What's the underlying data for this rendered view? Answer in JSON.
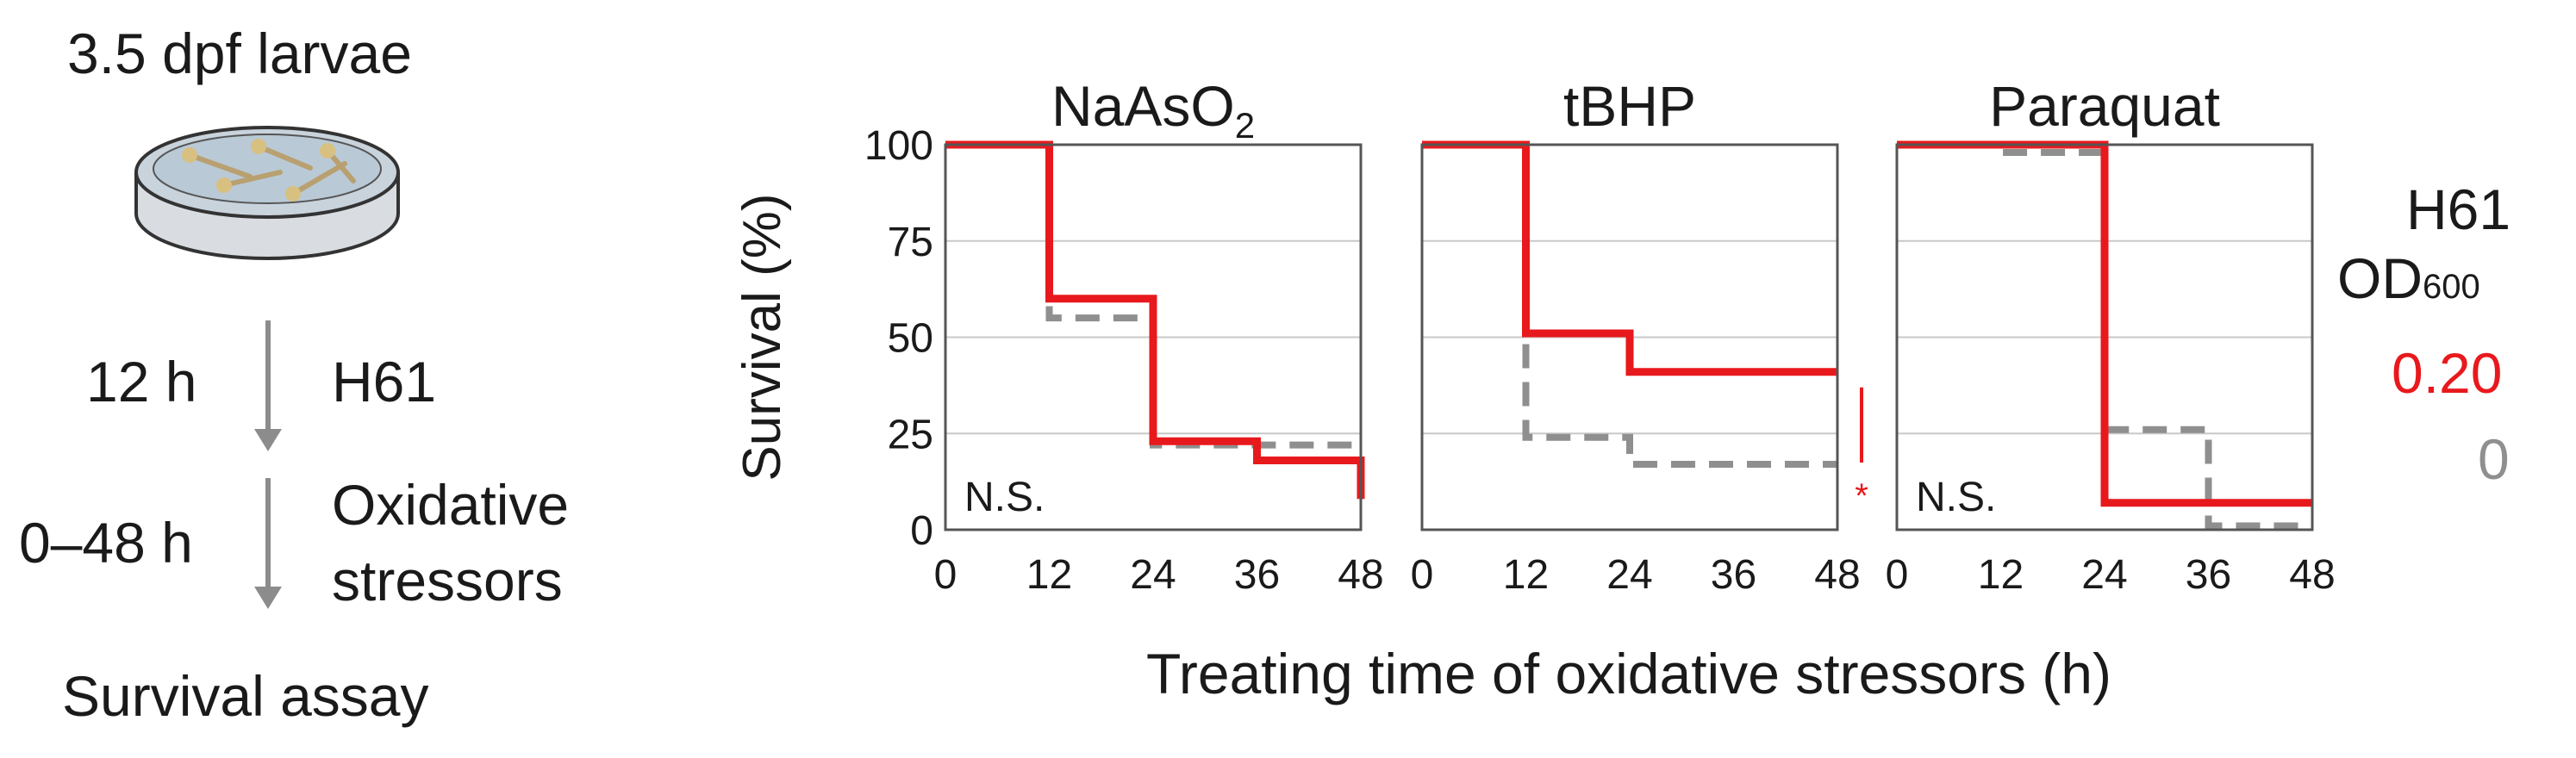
{
  "protocol": {
    "title": "3.5 dpf larvae",
    "step1_time": "12 h",
    "step1_label": "H61",
    "step2_time": "0–48 h",
    "step2_label_line1": "Oxidative",
    "step2_label_line2": "stressors",
    "final": "Survival assay"
  },
  "legend": {
    "title_line1": "H61",
    "title_od": "OD",
    "title_od_sub": "600",
    "entries": [
      {
        "label": "0.20",
        "color": "#e8191d"
      },
      {
        "label": "0",
        "color": "#8f8f8f"
      }
    ]
  },
  "colors": {
    "treated": "#e8191d",
    "control": "#8f8f8f",
    "grid": "#c8c8c8",
    "frame": "#555555"
  },
  "chart_data": {
    "type": "line",
    "step": true,
    "ylabel": "Survival (%)",
    "xlabel": "Treating time of oxidative stressors (h)",
    "xlim": [
      0,
      48
    ],
    "ylim": [
      0,
      100
    ],
    "xticks": [
      "0",
      "12",
      "24",
      "36",
      "48"
    ],
    "yticks": [
      "0",
      "25",
      "50",
      "75",
      "100"
    ],
    "panels": [
      {
        "title": "NaAsO",
        "title_sub": "2",
        "annotation": "N.S.",
        "x": [
          0,
          12,
          24,
          36,
          48
        ],
        "series": [
          {
            "name": "0.20",
            "values": [
              100,
              60,
              23,
              18,
              8
            ]
          },
          {
            "name": "0",
            "values": [
              100,
              55,
              22,
              22,
              22
            ]
          }
        ]
      },
      {
        "title": "tBHP",
        "title_sub": "",
        "annotation": "*",
        "x": [
          0,
          12,
          24,
          36,
          48
        ],
        "series": [
          {
            "name": "0.20",
            "values": [
              100,
              51,
              41,
              41,
              41
            ]
          },
          {
            "name": "0",
            "values": [
              100,
              24,
              17,
              17,
              17
            ]
          }
        ]
      },
      {
        "title": "Paraquat",
        "title_sub": "",
        "annotation": "N.S.",
        "x": [
          0,
          12,
          24,
          36,
          48
        ],
        "series": [
          {
            "name": "0.20",
            "values": [
              100,
              100,
              7,
              7,
              7
            ]
          },
          {
            "name": "0",
            "values": [
              100,
              98,
              26,
              1,
              1
            ]
          }
        ]
      }
    ]
  }
}
